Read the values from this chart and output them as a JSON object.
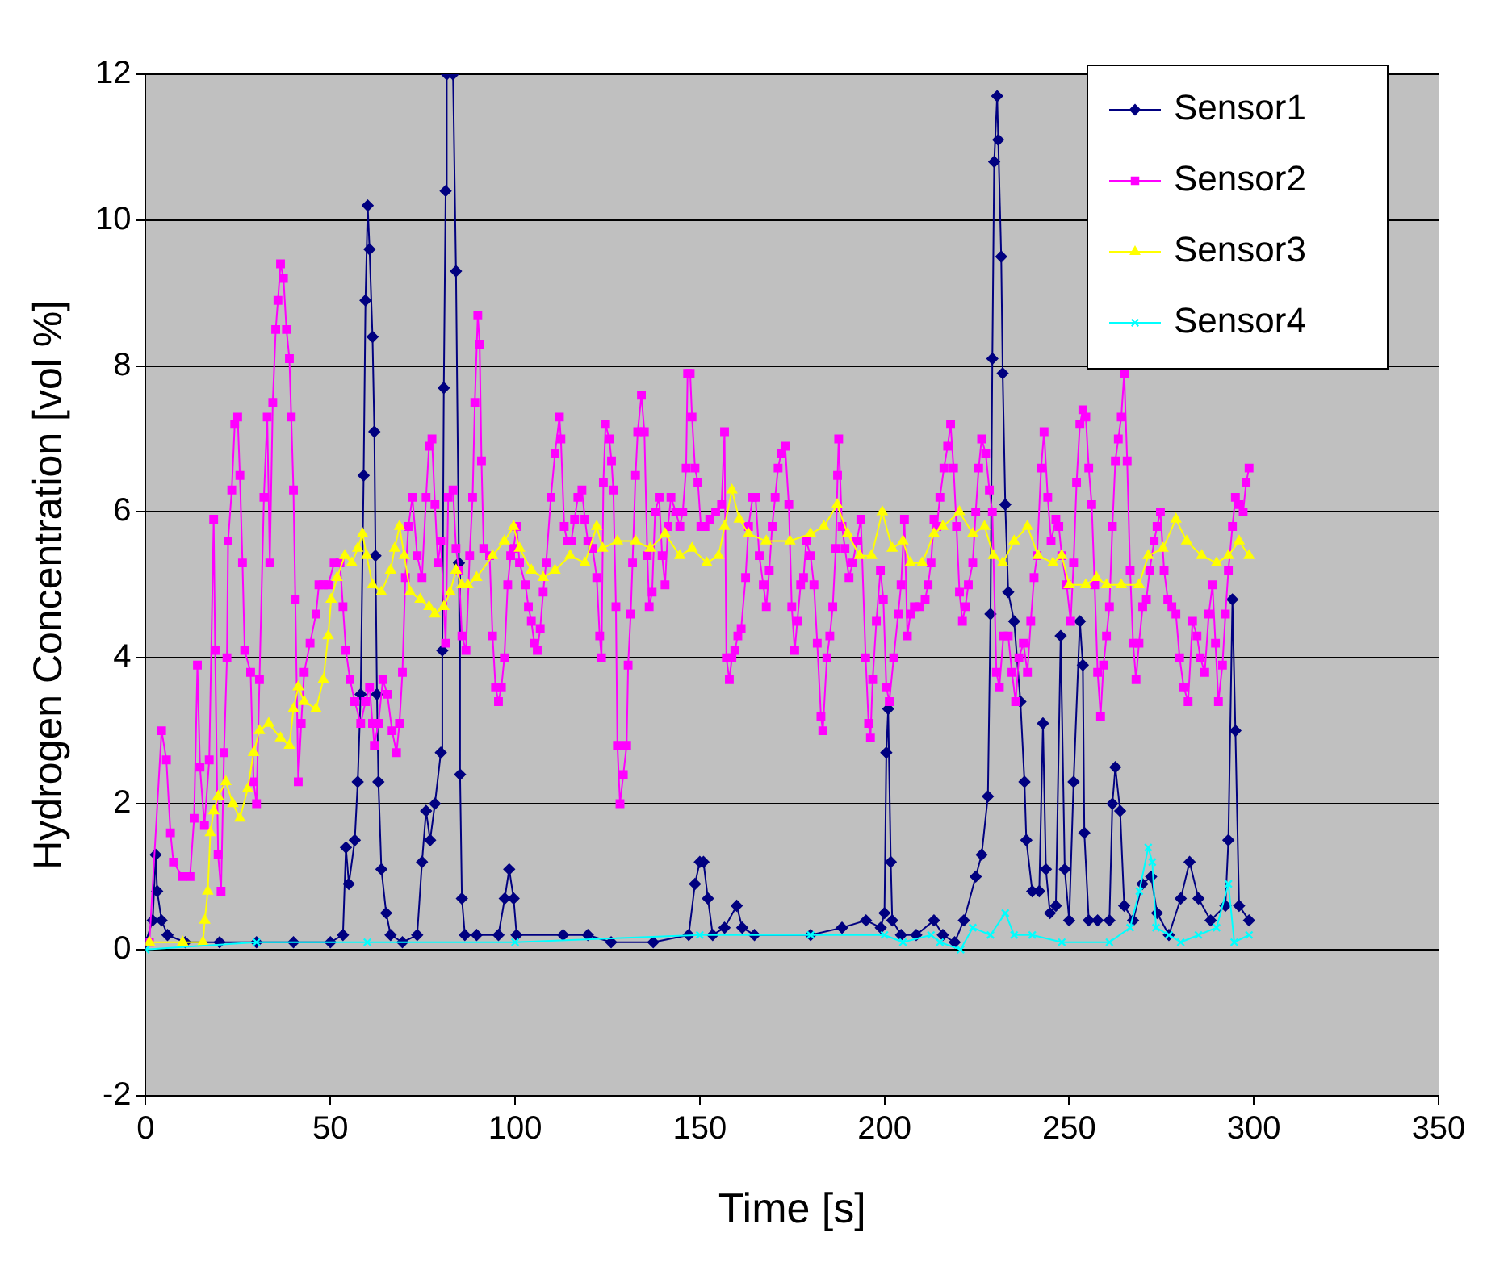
{
  "chart_data": {
    "type": "line",
    "xlabel": "Time [s]",
    "ylabel": "Hydrogen Concentration [vol %]",
    "xlim": [
      0,
      350
    ],
    "xticks": [
      0,
      50,
      100,
      150,
      200,
      250,
      300,
      350
    ],
    "ylim": [
      -2,
      12
    ],
    "yticks": [
      -2,
      0,
      2,
      4,
      6,
      8,
      10,
      12
    ],
    "grid": "y",
    "legend": "top right",
    "line_style": "solid",
    "series": [
      {
        "name": "Sensor1",
        "color": "#000080",
        "marker": "diamond",
        "x": [
          0,
          1.9,
          2.7,
          3.1,
          4.3,
          5.9,
          10.7,
          20,
          30,
          40,
          50,
          53.4,
          54.2,
          55,
          56.6,
          57.4,
          58.2,
          59,
          59.5,
          60.1,
          60.6,
          61.4,
          61.9,
          62.2,
          62.6,
          63,
          63.8,
          65.1,
          66.3,
          69.5,
          73.5,
          74.8,
          75.9,
          77,
          78.3,
          79.9,
          80.3,
          80.7,
          81.2,
          81.5,
          83.2,
          84,
          84.8,
          85.1,
          85.6,
          86.4,
          89.6,
          95.5,
          97.2,
          98.4,
          99.6,
          100.4,
          113,
          119.7,
          126,
          137.4,
          147,
          148.7,
          150,
          151,
          152.2,
          153.5,
          156.7,
          160,
          161.5,
          164.8,
          180,
          188.5,
          195,
          199,
          200,
          200.5,
          201,
          201.7,
          202.1,
          204.5,
          208.6,
          213.4,
          215.8,
          219,
          221.5,
          224.7,
          226.3,
          228,
          228.7,
          229.2,
          229.7,
          230.5,
          230.8,
          231.6,
          232,
          232.7,
          233.5,
          235.1,
          236.8,
          237.9,
          238.4,
          240,
          241.9,
          242.9,
          243.7,
          244.8,
          246.4,
          247.7,
          248.8,
          250,
          251.2,
          252.9,
          253.7,
          254.1,
          255.3,
          257.7,
          260.9,
          261.7,
          262.5,
          263.8,
          264.9,
          267.3,
          269.8,
          272.2,
          273.8,
          277,
          280.2,
          282.6,
          285,
          288.3,
          292.3,
          293.1,
          294.2,
          295,
          296,
          298.7
        ],
        "values": [
          0.1,
          0.4,
          1.3,
          0.8,
          0.4,
          0.2,
          0.1,
          0.1,
          0.1,
          0.1,
          0.1,
          0.2,
          1.4,
          0.9,
          1.5,
          2.3,
          3.5,
          6.5,
          8.9,
          10.2,
          9.6,
          8.4,
          7.1,
          5.4,
          3.5,
          2.3,
          1.1,
          0.5,
          0.2,
          0.1,
          0.2,
          1.2,
          1.9,
          1.5,
          2,
          2.7,
          4.1,
          7.7,
          10.4,
          12,
          12,
          9.3,
          5.3,
          2.4,
          0.7,
          0.2,
          0.2,
          0.2,
          0.7,
          1.1,
          0.7,
          0.2,
          0.2,
          0.2,
          0.1,
          0.1,
          0.2,
          0.9,
          1.2,
          1.2,
          0.7,
          0.2,
          0.3,
          0.6,
          0.3,
          0.2,
          0.2,
          0.3,
          0.4,
          0.3,
          0.5,
          2.7,
          3.3,
          1.2,
          0.4,
          0.2,
          0.2,
          0.4,
          0.2,
          0.1,
          0.4,
          1,
          1.3,
          2.1,
          4.6,
          8.1,
          10.8,
          11.7,
          11.1,
          9.5,
          7.9,
          6.1,
          4.9,
          4.5,
          3.4,
          2.3,
          1.5,
          0.8,
          0.8,
          3.1,
          1.1,
          0.5,
          0.6,
          4.3,
          1.1,
          0.4,
          2.3,
          4.5,
          3.9,
          1.6,
          0.4,
          0.4,
          0.4,
          2,
          2.5,
          1.9,
          0.6,
          0.4,
          0.9,
          1,
          0.5,
          0.2,
          0.7,
          1.2,
          0.7,
          0.4,
          0.6,
          1.5,
          4.8,
          3,
          0.6,
          0.4
        ]
      },
      {
        "name": "Sensor2",
        "color": "#ff00ff",
        "marker": "square",
        "x": [
          1,
          4.3,
          5.6,
          6.7,
          7.5,
          9.9,
          12,
          13.1,
          14,
          14.7,
          15.9,
          17.2,
          18.4,
          18.8,
          19.6,
          20.4,
          21.2,
          22,
          22.3,
          23.3,
          24.1,
          24.9,
          25.5,
          26.2,
          26.8,
          28.4,
          29.2,
          30,
          30.8,
          32,
          32.9,
          33.6,
          34.4,
          35.2,
          35.8,
          36.5,
          37.3,
          38.1,
          38.9,
          39.4,
          40,
          40.5,
          41.3,
          42.1,
          42.9,
          44.5,
          46.1,
          46.9,
          48.1,
          49.4,
          51,
          52.6,
          53.4,
          54.2,
          55.3,
          56.6,
          58.2,
          59.5,
          60.6,
          61.4,
          61.9,
          63,
          64.2,
          65.4,
          66.7,
          67.9,
          68.7,
          69.5,
          70.3,
          71.1,
          72.2,
          73.5,
          74.8,
          75.9,
          76.7,
          77.5,
          78.3,
          79.1,
          79.9,
          81.2,
          81.9,
          83.2,
          84,
          84.8,
          85.6,
          86.7,
          87.7,
          88.5,
          89.1,
          89.9,
          90.4,
          90.9,
          91.5,
          93.1,
          93.9,
          94.7,
          95.5,
          96.3,
          97.1,
          98,
          98.8,
          99.6,
          100.4,
          101.2,
          102.8,
          103.6,
          104.4,
          105.2,
          106,
          106.8,
          107.6,
          108.4,
          109.7,
          110.8,
          112,
          112.4,
          113.3,
          114.1,
          115.2,
          116.1,
          117,
          118.1,
          118.9,
          119.7,
          121,
          122.1,
          122.9,
          123.4,
          123.9,
          124.5,
          125.5,
          126.1,
          126.6,
          127.3,
          127.7,
          128.4,
          129.3,
          130.2,
          130.6,
          131.3,
          131.8,
          132.6,
          133.2,
          134.2,
          135,
          135.8,
          136.3,
          137.1,
          137.9,
          139,
          139.8,
          140.6,
          141.4,
          142.2,
          143.5,
          144.6,
          145.4,
          146.3,
          146.7,
          147.4,
          147.9,
          148.7,
          149.5,
          150.3,
          151.4,
          152.7,
          154.3,
          155.9,
          156.7,
          157.2,
          158,
          158.7,
          159.5,
          160.3,
          161.2,
          162.4,
          163.2,
          164.3,
          165.1,
          166.1,
          167.2,
          168,
          168.8,
          169.6,
          170.4,
          171.2,
          172,
          173.1,
          174.1,
          174.9,
          175.7,
          176.4,
          177.3,
          178.1,
          178.8,
          180,
          180.9,
          181.8,
          182.8,
          183.3,
          184.4,
          185.2,
          186,
          186.8,
          187.3,
          187.6,
          188.5,
          189.3,
          190.4,
          191.4,
          192.5,
          193.6,
          194.9,
          195.7,
          196.2,
          196.8,
          197.8,
          198.9,
          199.7,
          200.5,
          201.3,
          202.5,
          203.7,
          204.5,
          205.4,
          206.2,
          207,
          208.1,
          209.4,
          211,
          211.8,
          212.6,
          213.4,
          214.2,
          215,
          216.1,
          217.1,
          217.9,
          218.7,
          219.5,
          220.3,
          221.1,
          221.9,
          222.7,
          223.9,
          224.7,
          225.5,
          226.3,
          227.4,
          228.4,
          229.2,
          230.3,
          231.1,
          232.2,
          233.5,
          234.5,
          235.5,
          236.4,
          237.6,
          238.7,
          239.6,
          240.5,
          241.3,
          242.4,
          243.2,
          244.2,
          245.1,
          246.4,
          247.2,
          248,
          249.3,
          250.4,
          251.2,
          252,
          252.9,
          253.7,
          254.5,
          255.3,
          256.1,
          256.9,
          257.7,
          258.5,
          259.3,
          260.1,
          260.9,
          261.7,
          262.5,
          263.3,
          264.1,
          264.9,
          265.7,
          266.5,
          267.3,
          268.1,
          268.9,
          269.9,
          270.9,
          271.8,
          273,
          273.8,
          274.7,
          275.7,
          276.7,
          277.8,
          278.9,
          279.9,
          281,
          282.2,
          283.4,
          284.6,
          285.5,
          286.7,
          287.8,
          288.8,
          289.6,
          290.4,
          291.5,
          292.3,
          293.1,
          294.2,
          295,
          296,
          297.1,
          297.9,
          298.7
        ],
        "values": [
          0.1,
          3,
          2.6,
          1.6,
          1.2,
          1,
          1,
          1.8,
          3.9,
          2.5,
          1.7,
          2.6,
          5.9,
          4.1,
          1.3,
          0.8,
          2.7,
          4,
          5.6,
          6.3,
          7.2,
          7.3,
          6.5,
          5.3,
          4.1,
          3.8,
          2.3,
          2,
          3.7,
          6.2,
          7.3,
          5.3,
          7.5,
          8.5,
          8.9,
          9.4,
          9.2,
          8.5,
          8.1,
          7.3,
          6.3,
          4.8,
          2.3,
          3.1,
          3.8,
          4.2,
          4.6,
          5,
          5,
          5,
          5.3,
          5.3,
          4.7,
          4.1,
          3.7,
          3.4,
          3.1,
          3.4,
          3.6,
          3.1,
          2.8,
          3.1,
          3.7,
          3.5,
          3,
          2.7,
          3.1,
          3.8,
          5.1,
          5.8,
          6.2,
          5.4,
          5.1,
          6.2,
          6.9,
          7,
          6.1,
          5.3,
          5.6,
          4.2,
          6.2,
          6.3,
          5.5,
          5.2,
          4.3,
          4.1,
          5.4,
          6.2,
          7.5,
          8.7,
          8.3,
          6.7,
          5.5,
          5.4,
          4.3,
          3.6,
          3.4,
          3.6,
          4,
          5,
          5.4,
          5.5,
          5.8,
          5.3,
          5,
          4.7,
          4.5,
          4.2,
          4.1,
          4.4,
          4.9,
          5.3,
          6.2,
          6.8,
          7.3,
          7,
          5.8,
          5.6,
          5.6,
          5.9,
          6.2,
          6.3,
          5.9,
          5.6,
          5.5,
          5.1,
          4.3,
          4,
          6.4,
          7.2,
          7,
          6.7,
          6.3,
          4.7,
          2.8,
          2,
          2.4,
          2.8,
          3.9,
          4.6,
          5.3,
          6.5,
          7.1,
          7.6,
          7.1,
          5.4,
          4.7,
          4.9,
          6,
          6.2,
          5.4,
          5,
          5.8,
          6.2,
          6,
          5.8,
          6,
          6.6,
          7.9,
          7.9,
          7.3,
          6.6,
          6.4,
          5.8,
          5.8,
          5.9,
          6,
          6.1,
          7.1,
          4,
          3.7,
          4,
          4.1,
          4.3,
          4.4,
          5.1,
          5.8,
          6.2,
          6.2,
          5.4,
          5,
          4.7,
          5.2,
          5.8,
          6.2,
          6.6,
          6.8,
          6.9,
          6.1,
          4.7,
          4.1,
          4.5,
          5,
          5.1,
          5.6,
          5.4,
          5,
          4.2,
          3.2,
          3,
          4,
          4.3,
          4.7,
          5.5,
          6.5,
          7,
          5.8,
          5.5,
          5.1,
          5.3,
          5.6,
          5.9,
          4,
          3.1,
          2.9,
          3.7,
          4.5,
          5.2,
          4.8,
          3.6,
          3.4,
          4,
          4.6,
          5,
          5.9,
          4.3,
          4.6,
          4.7,
          4.7,
          4.8,
          5,
          5.3,
          5.9,
          5.8,
          6.2,
          6.6,
          6.9,
          7.2,
          6.6,
          5.8,
          4.9,
          4.5,
          4.7,
          5,
          5.3,
          6,
          6.6,
          7,
          6.8,
          6.3,
          6,
          3.8,
          3.6,
          4.3,
          4.3,
          3.8,
          3.4,
          4,
          4.2,
          3.8,
          4.5,
          5.1,
          5.4,
          6.6,
          7.1,
          6.2,
          5.6,
          5.9,
          5.8,
          5.4,
          5,
          4.5,
          5.3,
          6.4,
          7.2,
          7.4,
          7.3,
          6.6,
          6.1,
          5,
          3.8,
          3.2,
          3.9,
          4.3,
          4.7,
          5.8,
          6.7,
          7,
          7.3,
          7.9,
          6.7,
          5.2,
          4.2,
          3.7,
          4.2,
          4.7,
          4.8,
          5.2,
          5.6,
          5.8,
          6,
          5.2,
          4.8,
          4.7,
          4.6,
          4,
          3.6,
          3.4,
          4.5,
          4.3,
          4,
          3.8,
          4.6,
          5,
          4.2,
          3.4,
          3.9,
          4.6,
          5.2,
          5.8,
          6.2,
          6.1,
          6,
          6.4,
          6.6
        ]
      },
      {
        "name": "Sensor3",
        "color": "#ffff00",
        "marker": "triangle",
        "x": [
          1,
          10,
          15.5,
          16,
          16.8,
          17.5,
          18.4,
          19.6,
          21.7,
          23.6,
          25.5,
          27.6,
          29.2,
          30.8,
          33.3,
          36.5,
          38.9,
          40,
          41.3,
          42.9,
          46.1,
          48.1,
          49.4,
          50.2,
          51.8,
          53.9,
          55.8,
          57.4,
          58.7,
          59.8,
          61.4,
          63.8,
          66.3,
          67.4,
          68.7,
          70,
          71.6,
          74.3,
          76.7,
          78.3,
          80.7,
          82.4,
          84,
          85.6,
          87.2,
          89.6,
          93.9,
          97.1,
          99.6,
          101.2,
          104.4,
          107.6,
          110.8,
          114.9,
          118.9,
          122.1,
          123.7,
          127.7,
          132.6,
          136.6,
          140.6,
          144.6,
          147.9,
          151.9,
          155.1,
          156.7,
          158.7,
          160.7,
          163.2,
          168,
          174.4,
          180,
          183.6,
          187.2,
          190,
          193.3,
          196.5,
          199.4,
          202.1,
          205,
          207,
          210.2,
          213.4,
          215.8,
          220.3,
          223.9,
          227.1,
          229.5,
          232,
          235.1,
          238.7,
          241.6,
          245.6,
          248,
          250,
          254.5,
          257.4,
          260.1,
          264.1,
          268.9,
          271.4,
          275.4,
          278.9,
          281.8,
          285.9,
          289.9,
          293.1,
          296,
          298.7
        ],
        "values": [
          0.1,
          0.1,
          0.1,
          0.4,
          0.8,
          1.6,
          1.9,
          2.1,
          2.3,
          2,
          1.8,
          2.2,
          2.7,
          3,
          3.1,
          2.9,
          2.8,
          3.3,
          3.6,
          3.4,
          3.3,
          3.7,
          4.3,
          4.8,
          5.1,
          5.4,
          5.3,
          5.5,
          5.7,
          5.4,
          5,
          4.9,
          5.2,
          5.5,
          5.8,
          5.4,
          4.9,
          4.8,
          4.7,
          4.6,
          4.7,
          4.9,
          5.2,
          5,
          5,
          5.1,
          5.4,
          5.6,
          5.8,
          5.5,
          5.2,
          5.1,
          5.2,
          5.4,
          5.3,
          5.8,
          5.5,
          5.6,
          5.6,
          5.5,
          5.7,
          5.4,
          5.5,
          5.3,
          5.4,
          5.8,
          6.3,
          5.9,
          5.7,
          5.6,
          5.6,
          5.7,
          5.8,
          6.1,
          5.7,
          5.4,
          5.4,
          6,
          5.5,
          5.6,
          5.3,
          5.3,
          5.7,
          5.8,
          6,
          5.7,
          5.8,
          5.4,
          5.3,
          5.6,
          5.8,
          5.4,
          5.3,
          5.4,
          5,
          5,
          5.1,
          5,
          5,
          5,
          5.4,
          5.5,
          5.9,
          5.6,
          5.4,
          5.3,
          5.4,
          5.6,
          5.4
        ]
      },
      {
        "name": "Sensor4",
        "color": "#00ffff",
        "marker": "cross",
        "x": [
          0,
          30,
          60,
          100,
          150,
          180,
          200,
          205,
          212.6,
          215,
          220.6,
          223.9,
          228.7,
          232.7,
          235.1,
          240,
          248,
          260.9,
          266.5,
          269,
          271.4,
          272.5,
          273.5,
          277,
          280.2,
          285,
          289.9,
          293.1,
          294.7,
          298.7
        ],
        "values": [
          0,
          0.1,
          0.1,
          0.1,
          0.2,
          0.2,
          0.2,
          0.1,
          0.2,
          0.1,
          0,
          0.3,
          0.2,
          0.5,
          0.2,
          0.2,
          0.1,
          0.1,
          0.3,
          0.8,
          1.4,
          1.2,
          0.3,
          0.2,
          0.1,
          0.2,
          0.3,
          0.9,
          0.1,
          0.2
        ]
      }
    ]
  }
}
